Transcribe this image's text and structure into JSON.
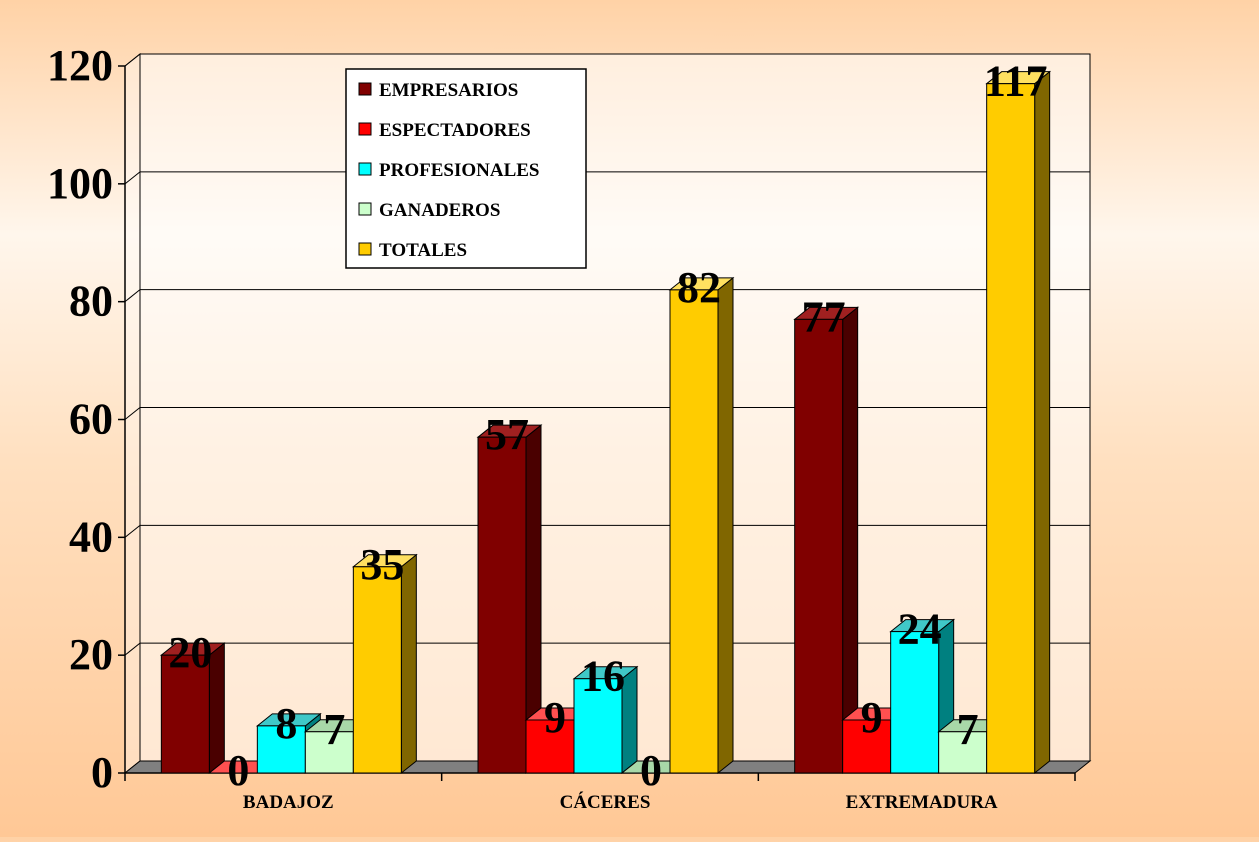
{
  "chart_data": {
    "type": "bar",
    "title": "",
    "xlabel": "",
    "ylabel": "",
    "categories": [
      "BADAJOZ",
      "CÁCERES",
      "EXTREMADURA"
    ],
    "series": [
      {
        "name": "EMPRESARIOS",
        "color": "#800000",
        "side": "#4a0000",
        "top": "#a02020",
        "values": [
          20,
          57,
          77
        ]
      },
      {
        "name": "ESPECTADORES",
        "color": "#ff0000",
        "side": "#a00000",
        "top": "#ff5050",
        "values": [
          0,
          9,
          9
        ]
      },
      {
        "name": "PROFESIONALES",
        "color": "#00ffff",
        "side": "#008080",
        "top": "#40c8c8",
        "values": [
          8,
          16,
          24
        ]
      },
      {
        "name": "GANADEROS",
        "color": "#ccffcc",
        "side": "#80a080",
        "top": "#a8d8a8",
        "values": [
          7,
          0,
          7
        ]
      },
      {
        "name": "TOTALES",
        "color": "#ffcc00",
        "side": "#806600",
        "top": "#ffe060",
        "values": [
          35,
          82,
          117
        ]
      }
    ],
    "ylim": [
      0,
      120
    ],
    "yticks": [
      "0",
      "20",
      "40",
      "60",
      "80",
      "100",
      "120"
    ],
    "ytick_values": [
      0,
      20,
      40,
      60,
      80,
      100,
      120
    ],
    "grid": true,
    "legend": "top-left inside plot"
  }
}
